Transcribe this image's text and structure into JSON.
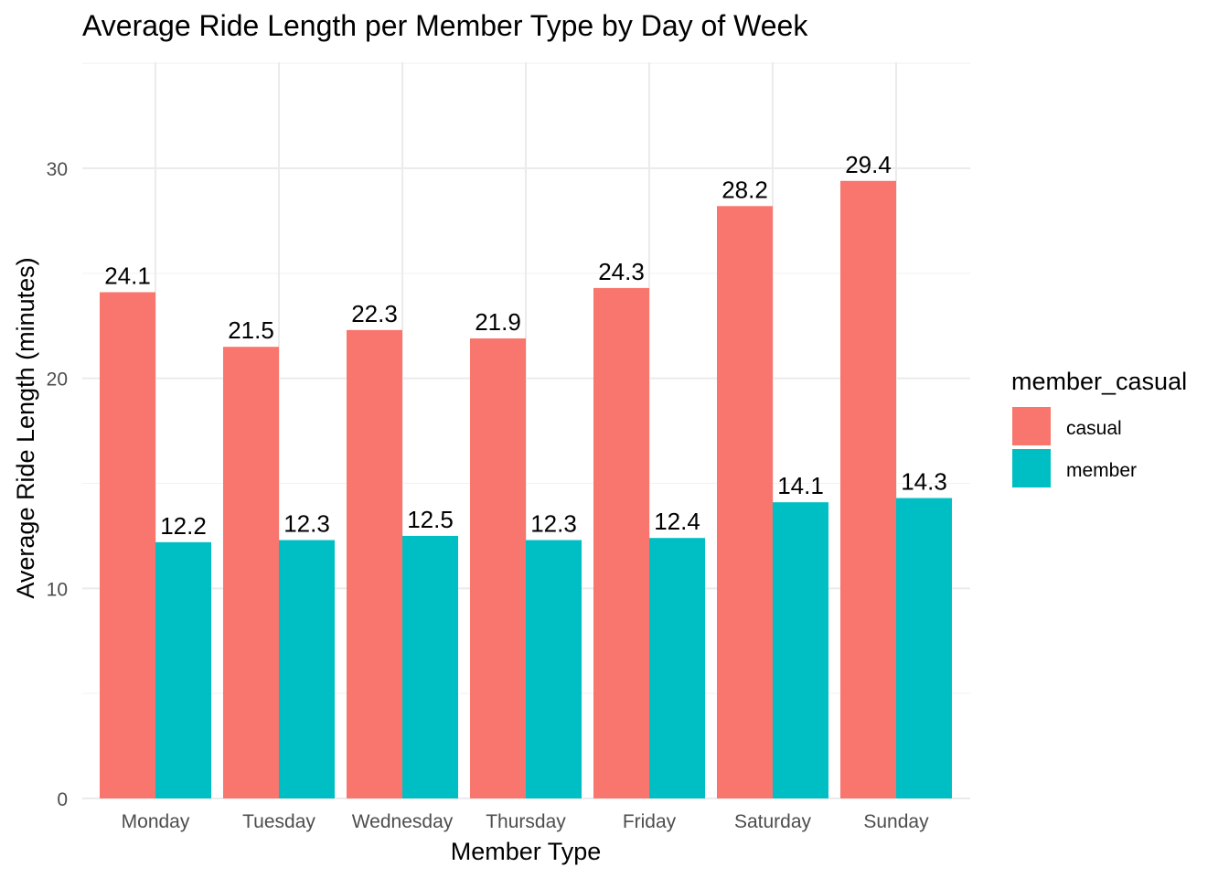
{
  "chart_data": {
    "type": "bar",
    "title": "Average Ride Length per Member Type by Day of Week",
    "xlabel": "Member Type",
    "ylabel": "Average Ride Length (minutes)",
    "categories": [
      "Monday",
      "Tuesday",
      "Wednesday",
      "Thursday",
      "Friday",
      "Saturday",
      "Sunday"
    ],
    "series": [
      {
        "name": "casual",
        "color": "#F8766D",
        "values": [
          24.1,
          21.5,
          22.3,
          21.9,
          24.3,
          28.2,
          29.4
        ]
      },
      {
        "name": "member",
        "color": "#00BFC4",
        "values": [
          12.2,
          12.3,
          12.5,
          12.3,
          12.4,
          14.1,
          14.3
        ]
      }
    ],
    "data_labels": [
      [
        "24.1",
        "21.5",
        "22.3",
        "21.9",
        "24.3",
        "28.2",
        "29.4"
      ],
      [
        "12.2",
        "12.3",
        "12.5",
        "12.3",
        "12.4",
        "14.1",
        "14.3"
      ]
    ],
    "yticks": [
      0,
      10,
      20,
      30
    ],
    "ytick_labels": [
      "0",
      "10",
      "20",
      "30"
    ],
    "ylim": [
      0,
      35
    ],
    "grid": true,
    "legend": {
      "title": "member_casual",
      "position": "right"
    }
  }
}
